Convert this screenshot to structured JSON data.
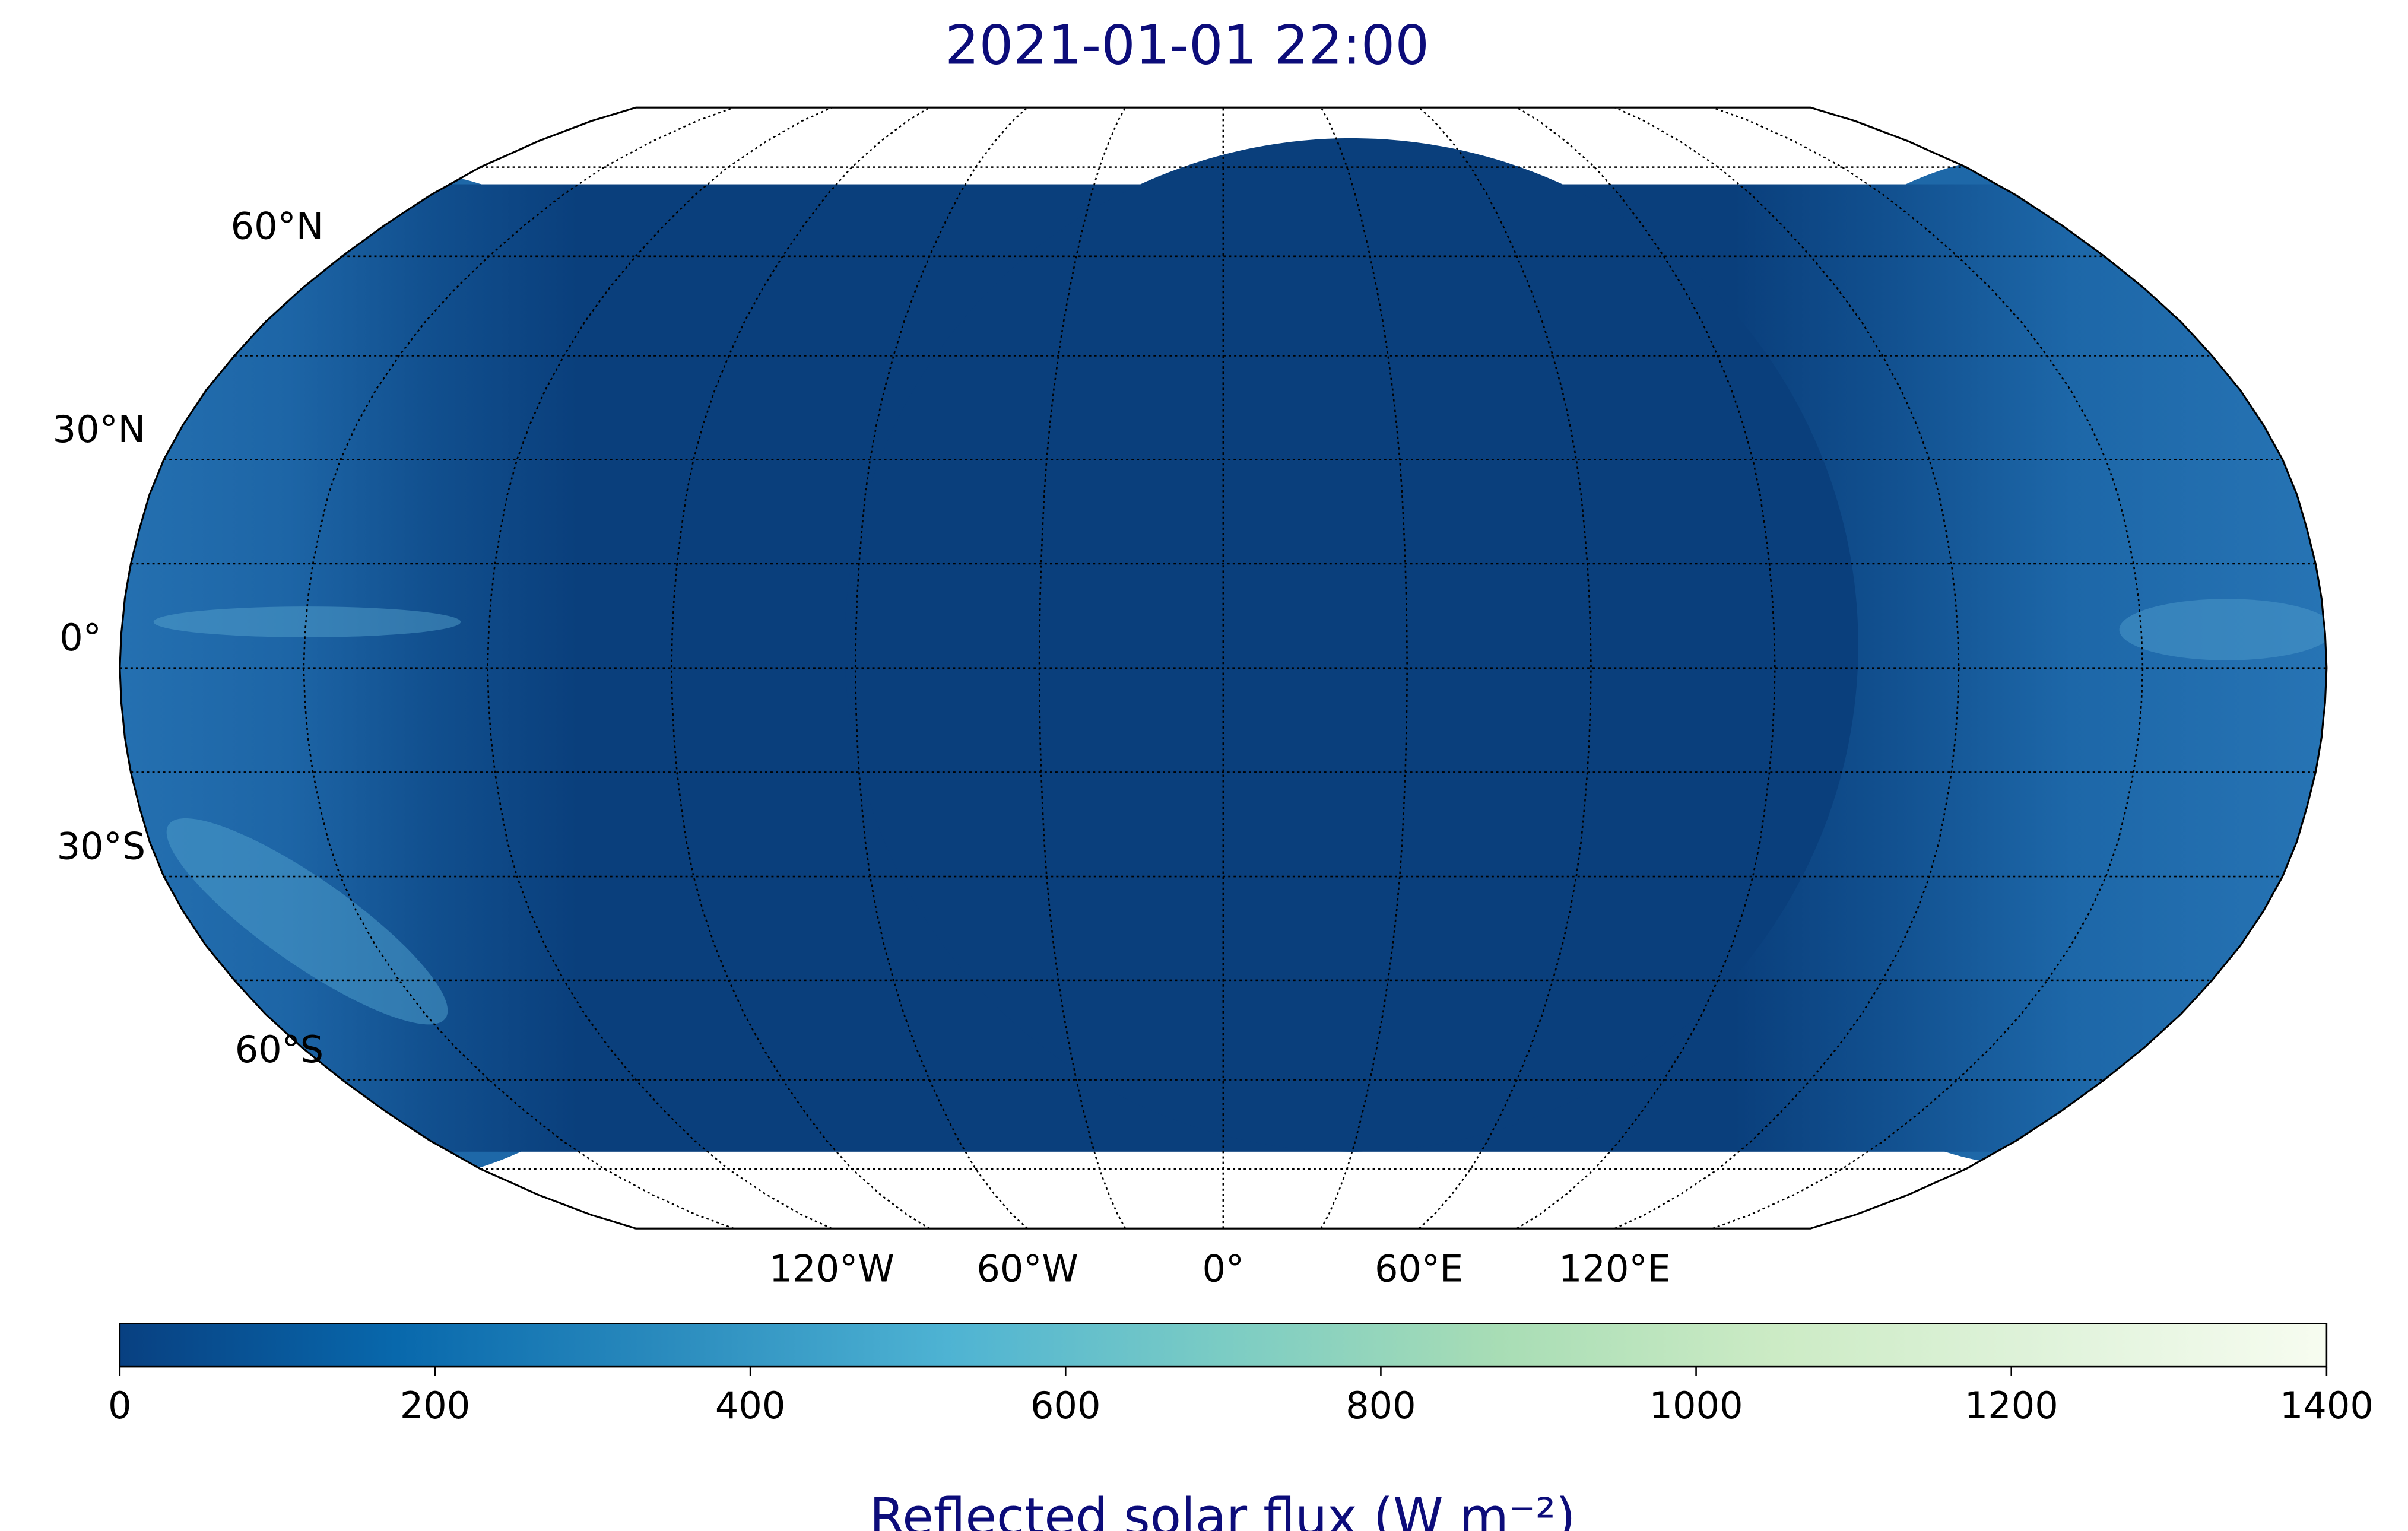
{
  "title": "2021-01-01 22:00",
  "map": {
    "projection": "Robinson",
    "lat_labels": [
      {
        "value": 60,
        "label": "60°N"
      },
      {
        "value": 30,
        "label": "30°N"
      },
      {
        "value": 0,
        "label": "0°"
      },
      {
        "value": -30,
        "label": "30°S"
      },
      {
        "value": -60,
        "label": "60°S"
      }
    ],
    "lon_labels": [
      {
        "value": -120,
        "label": "120°W"
      },
      {
        "value": -60,
        "label": "60°W"
      },
      {
        "value": 0,
        "label": "0°"
      },
      {
        "value": 60,
        "label": "60°E"
      },
      {
        "value": 120,
        "label": "120°E"
      }
    ]
  },
  "colorbar": {
    "label": "Reflected solar flux (W m⁻²)",
    "lim": [
      0,
      1400
    ],
    "ticks": [
      0,
      200,
      400,
      600,
      800,
      1000,
      1200,
      1400
    ],
    "colors": [
      "#084081",
      "#0868ac",
      "#2b8cbe",
      "#4eb3d3",
      "#7bccc4",
      "#a8ddb5",
      "#ccebc5",
      "#e0f3db",
      "#f7fcf0"
    ]
  }
}
